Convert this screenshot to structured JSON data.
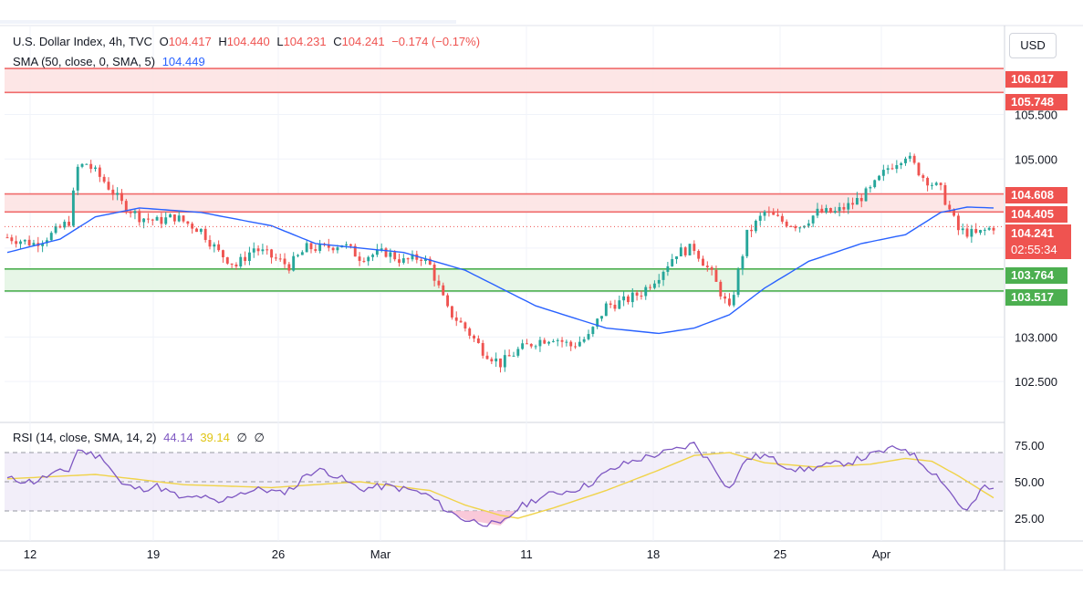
{
  "header": {
    "symbol": "U.S. Dollar Index, 4h, TVC",
    "open_label": "O",
    "open": "104.417",
    "high_label": "H",
    "high": "104.440",
    "low_label": "L",
    "low": "104.231",
    "close_label": "C",
    "close": "104.241",
    "change": "−0.174 (−0.17%)"
  },
  "sma_legend": {
    "label": "SMA (50, close, 0, SMA, 5)",
    "value": "104.449"
  },
  "rsi_legend": {
    "label": "RSI (14, close, SMA, 14, 2)",
    "rsi": "44.14",
    "ma": "39.14",
    "extra1": "∅",
    "extra2": "∅"
  },
  "currency": "USD",
  "price_tags": {
    "r1_top": "106.017",
    "r1_bottom": "105.748",
    "r2_top": "104.608",
    "r2_bottom": "104.405",
    "s_top": "103.764",
    "s_bottom": "103.517",
    "last_price": "104.241",
    "countdown": "02:55:34"
  },
  "colors": {
    "up": "#26a69a",
    "down": "#ef5350",
    "sma": "#2962ff",
    "rsi": "#7e57c2",
    "rsi_ma": "#f0d34a",
    "resistance_fill": "#fde2e2",
    "resistance_line": "#f06a6a",
    "support_fill": "#e3f4e3",
    "support_line": "#4caf50"
  },
  "chart_data": {
    "type": "candlestick",
    "price_axis": {
      "ticks": [
        "105.500",
        "105.000",
        "103.000",
        "102.500"
      ],
      "range": [
        102.05,
        106.5
      ]
    },
    "rsi_axis": {
      "ticks": [
        "75.00",
        "50.00",
        "25.00"
      ],
      "levels": [
        70,
        50,
        30
      ],
      "range": [
        10,
        90
      ]
    },
    "x_ticks": [
      "12",
      "19",
      "26",
      "Mar",
      "11",
      "18",
      "25",
      "Apr"
    ],
    "zones": [
      {
        "kind": "resistance",
        "top": 106.017,
        "bottom": 105.748
      },
      {
        "kind": "resistance",
        "top": 104.608,
        "bottom": 104.405
      },
      {
        "kind": "support",
        "top": 103.764,
        "bottom": 103.517
      }
    ],
    "last_price": 104.241,
    "close_path": [
      [
        0,
        104.12
      ],
      [
        6,
        104.05
      ],
      [
        10,
        104.15
      ],
      [
        14,
        104.3
      ],
      [
        16,
        104.9
      ],
      [
        18,
        104.95
      ],
      [
        22,
        104.75
      ],
      [
        26,
        104.5
      ],
      [
        30,
        104.35
      ],
      [
        34,
        104.3
      ],
      [
        38,
        104.35
      ],
      [
        44,
        104.2
      ],
      [
        48,
        103.95
      ],
      [
        52,
        103.8
      ],
      [
        56,
        104.0
      ],
      [
        60,
        103.9
      ],
      [
        64,
        103.8
      ],
      [
        68,
        104.0
      ],
      [
        72,
        104.0
      ],
      [
        76,
        104.05
      ],
      [
        80,
        103.9
      ],
      [
        86,
        103.95
      ],
      [
        90,
        103.85
      ],
      [
        94,
        103.9
      ],
      [
        96,
        103.8
      ],
      [
        100,
        103.3
      ],
      [
        104,
        103.1
      ],
      [
        108,
        102.85
      ],
      [
        112,
        102.7
      ],
      [
        116,
        102.85
      ],
      [
        120,
        102.95
      ],
      [
        124,
        103.0
      ],
      [
        128,
        102.9
      ],
      [
        132,
        103.0
      ],
      [
        136,
        103.35
      ],
      [
        140,
        103.4
      ],
      [
        144,
        103.5
      ],
      [
        148,
        103.7
      ],
      [
        152,
        103.95
      ],
      [
        156,
        104.0
      ],
      [
        160,
        103.7
      ],
      [
        164,
        103.3
      ],
      [
        168,
        104.15
      ],
      [
        172,
        104.4
      ],
      [
        176,
        104.3
      ],
      [
        180,
        104.25
      ],
      [
        184,
        104.4
      ],
      [
        188,
        104.4
      ],
      [
        192,
        104.5
      ],
      [
        196,
        104.65
      ],
      [
        200,
        104.9
      ],
      [
        204,
        105.05
      ],
      [
        208,
        104.8
      ],
      [
        212,
        104.65
      ],
      [
        216,
        104.2
      ],
      [
        220,
        104.15
      ],
      [
        224,
        104.24
      ]
    ],
    "sma_path": [
      [
        0,
        103.95
      ],
      [
        12,
        104.1
      ],
      [
        20,
        104.35
      ],
      [
        30,
        104.45
      ],
      [
        44,
        104.4
      ],
      [
        60,
        104.25
      ],
      [
        70,
        104.05
      ],
      [
        90,
        103.95
      ],
      [
        104,
        103.75
      ],
      [
        120,
        103.35
      ],
      [
        136,
        103.1
      ],
      [
        148,
        103.04
      ],
      [
        156,
        103.1
      ],
      [
        164,
        103.25
      ],
      [
        172,
        103.55
      ],
      [
        182,
        103.85
      ],
      [
        194,
        104.05
      ],
      [
        204,
        104.15
      ],
      [
        212,
        104.4
      ],
      [
        218,
        104.46
      ],
      [
        224,
        104.45
      ]
    ],
    "rsi_path": [
      [
        0,
        52
      ],
      [
        6,
        50
      ],
      [
        10,
        55
      ],
      [
        14,
        58
      ],
      [
        16,
        72
      ],
      [
        18,
        70
      ],
      [
        22,
        66
      ],
      [
        26,
        48
      ],
      [
        30,
        45
      ],
      [
        34,
        47
      ],
      [
        40,
        38
      ],
      [
        44,
        40
      ],
      [
        48,
        35
      ],
      [
        52,
        42
      ],
      [
        58,
        45
      ],
      [
        62,
        42
      ],
      [
        66,
        48
      ],
      [
        68,
        56
      ],
      [
        72,
        58
      ],
      [
        76,
        52
      ],
      [
        80,
        45
      ],
      [
        86,
        47
      ],
      [
        92,
        44
      ],
      [
        96,
        40
      ],
      [
        100,
        30
      ],
      [
        104,
        24
      ],
      [
        108,
        22
      ],
      [
        112,
        20
      ],
      [
        116,
        32
      ],
      [
        120,
        38
      ],
      [
        124,
        42
      ],
      [
        128,
        44
      ],
      [
        132,
        48
      ],
      [
        136,
        56
      ],
      [
        140,
        62
      ],
      [
        144,
        66
      ],
      [
        148,
        69
      ],
      [
        152,
        72
      ],
      [
        156,
        76
      ],
      [
        160,
        62
      ],
      [
        164,
        45
      ],
      [
        168,
        66
      ],
      [
        172,
        68
      ],
      [
        176,
        62
      ],
      [
        180,
        58
      ],
      [
        184,
        60
      ],
      [
        188,
        62
      ],
      [
        192,
        64
      ],
      [
        196,
        68
      ],
      [
        200,
        72
      ],
      [
        204,
        73
      ],
      [
        208,
        62
      ],
      [
        212,
        52
      ],
      [
        216,
        35
      ],
      [
        218,
        30
      ],
      [
        220,
        38
      ],
      [
        222,
        47
      ],
      [
        224,
        44
      ]
    ],
    "rsi_ma_path": [
      [
        0,
        52
      ],
      [
        20,
        55
      ],
      [
        40,
        48
      ],
      [
        60,
        46
      ],
      [
        80,
        50
      ],
      [
        96,
        44
      ],
      [
        104,
        34
      ],
      [
        112,
        27
      ],
      [
        116,
        25
      ],
      [
        124,
        32
      ],
      [
        136,
        44
      ],
      [
        148,
        58
      ],
      [
        156,
        68
      ],
      [
        164,
        70
      ],
      [
        172,
        63
      ],
      [
        184,
        60
      ],
      [
        196,
        62
      ],
      [
        204,
        66
      ],
      [
        210,
        64
      ],
      [
        216,
        54
      ],
      [
        224,
        39
      ]
    ]
  }
}
